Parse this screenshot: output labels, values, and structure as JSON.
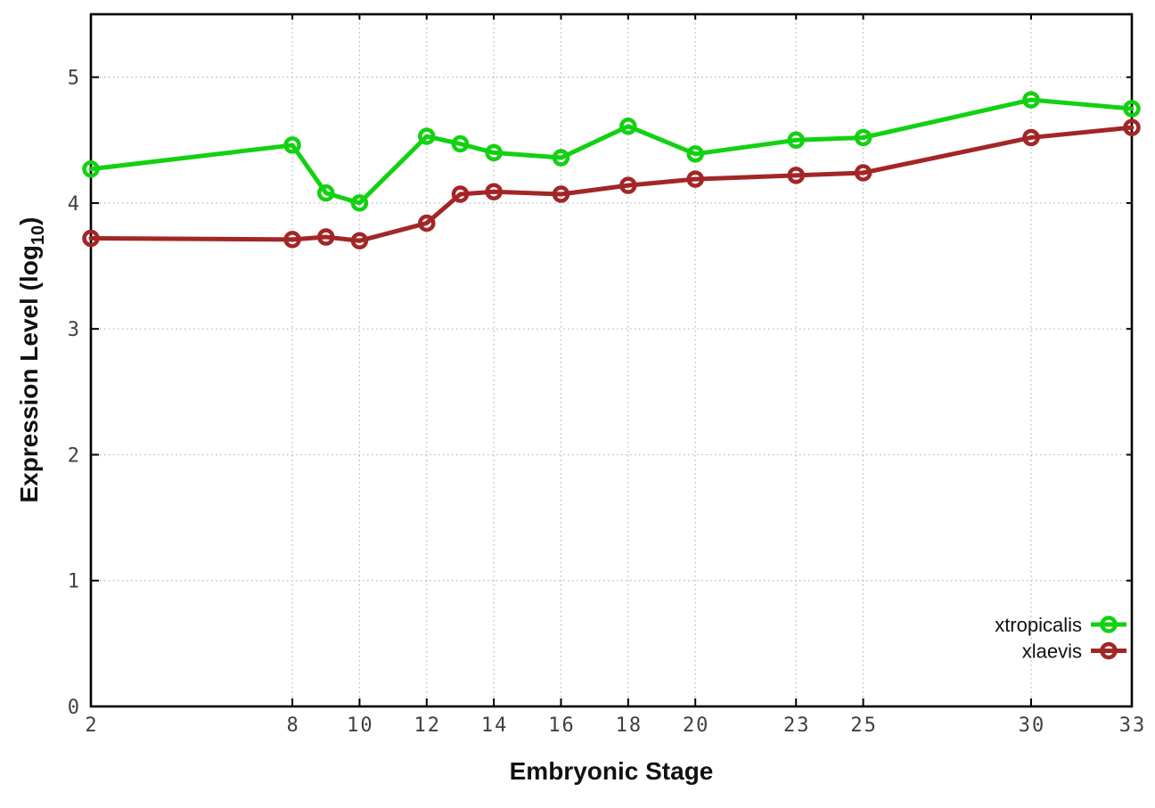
{
  "chart_data": {
    "type": "line",
    "xlabel": "Embryonic Stage",
    "ylabel": "Expression Level (log10)",
    "ylabel_rich": {
      "pre": "Expression Level (log",
      "sub": "10",
      "post": ")"
    },
    "x": [
      2,
      8,
      9,
      10,
      12,
      13,
      14,
      16,
      18,
      20,
      23,
      25,
      30,
      33
    ],
    "series": [
      {
        "name": "xtropicalis",
        "color": "#12d112",
        "values": [
          4.27,
          4.46,
          4.08,
          4.0,
          4.53,
          4.47,
          4.4,
          4.36,
          4.61,
          4.39,
          4.5,
          4.52,
          4.82,
          4.75
        ]
      },
      {
        "name": "xlaevis",
        "color": "#a32626",
        "values": [
          3.72,
          3.71,
          3.73,
          3.7,
          3.84,
          4.07,
          4.09,
          4.07,
          4.14,
          4.19,
          4.22,
          4.24,
          4.52,
          4.6
        ]
      }
    ],
    "xticks": [
      2,
      8,
      10,
      12,
      14,
      16,
      18,
      20,
      23,
      25,
      30,
      33
    ],
    "yticks": [
      0,
      1,
      2,
      3,
      4,
      5
    ],
    "xlim": [
      2,
      33
    ],
    "ylim": [
      0,
      5.5
    ],
    "grid": true,
    "legend_position": "inside-bottom-right",
    "colors": {
      "border": "#000000",
      "grid": "#b5b5b5",
      "tick_text": "#404040",
      "label_text": "#111111",
      "background": "#ffffff"
    }
  }
}
